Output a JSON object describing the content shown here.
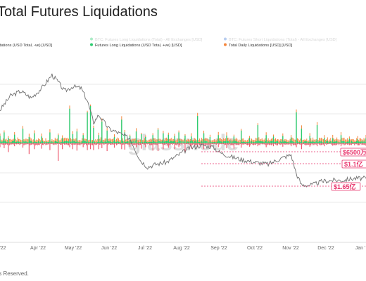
{
  "page": {
    "title": "Total Futures Liquidations",
    "footer": "ts Reserved."
  },
  "colors": {
    "long": "#2ecc71",
    "short": "#ee5a6f",
    "total": "#f5863b",
    "price": "#6e6e6e",
    "price_faded": "#7aa0e8",
    "tag": "#e8336b",
    "grid": "#e8e8e8",
    "axis_text": "#666666",
    "watermark": "#dddddd"
  },
  "watermark": "glassnode",
  "chart_data": {
    "type": "bar",
    "title": "Total Futures Liquidations",
    "legend": {
      "placement": "top",
      "entries": [
        {
          "label": "BTC: Futures Long Liquidations (Total) - All Exchanges [USD]",
          "color": "#2ecc71",
          "faded": true
        },
        {
          "label": "BTC: Futures Short Liquidations (Total) - All Exchanges [USD]",
          "color": "#4a7fd6",
          "faded": true
        },
        {
          "label": "uidations (USD Total, -ve) [USD]",
          "color": "#ee5a6f",
          "faded": false,
          "no_marker": true
        },
        {
          "label": "Futures Long Liquidations (USD Total, +ve) [USD]",
          "color": "#2ecc71",
          "faded": false
        },
        {
          "label": "Total Daily Liquidations [USD] [USD]",
          "color": "#f5863b",
          "faded": false
        }
      ]
    },
    "x_axis": {
      "ticks": [
        "'22",
        "Apr '22",
        "May '22",
        "Jun '22",
        "Jul '22",
        "Aug '22",
        "Sep '22",
        "Oct '22",
        "Nov '22",
        "Dec '22",
        "Jan '"
      ],
      "unit": "days"
    },
    "grid": true,
    "zero_level": 0,
    "value_labels": [
      {
        "text": "$6500万",
        "value": -65000000
      },
      {
        "text": "$1.1亿",
        "value": -110000000
      },
      {
        "text": "$1.65亿",
        "value": -165000000
      }
    ],
    "spikes": [
      {
        "day": 0,
        "long": 80,
        "short": 40
      },
      {
        "day": 4,
        "long": 120,
        "short": 50
      },
      {
        "day": 8,
        "long": 60,
        "short": 90
      },
      {
        "day": 14,
        "long": 95,
        "short": 30
      },
      {
        "day": 22,
        "long": 160,
        "short": 45
      },
      {
        "day": 28,
        "long": 70,
        "short": 110
      },
      {
        "day": 33,
        "long": 110,
        "short": 60
      },
      {
        "day": 40,
        "long": 75,
        "short": 55
      },
      {
        "day": 48,
        "long": 120,
        "short": 70
      },
      {
        "day": 56,
        "long": 90,
        "short": 180
      },
      {
        "day": 60,
        "long": 60,
        "short": 60
      },
      {
        "day": 67,
        "long": 380,
        "short": 40
      },
      {
        "day": 70,
        "long": 100,
        "short": 60
      },
      {
        "day": 74,
        "long": 130,
        "short": 75
      },
      {
        "day": 80,
        "long": 90,
        "short": 40
      },
      {
        "day": 84,
        "long": 340,
        "short": 70
      },
      {
        "day": 87,
        "long": 410,
        "short": 60
      },
      {
        "day": 90,
        "long": 170,
        "short": 70
      },
      {
        "day": 95,
        "long": 90,
        "short": 60
      },
      {
        "day": 98,
        "long": 240,
        "short": 50
      },
      {
        "day": 103,
        "long": 140,
        "short": 80
      },
      {
        "day": 110,
        "long": 70,
        "short": 45
      },
      {
        "day": 117,
        "long": 260,
        "short": 60
      },
      {
        "day": 120,
        "long": 120,
        "short": 65
      },
      {
        "day": 125,
        "long": 80,
        "short": 35
      },
      {
        "day": 131,
        "long": 130,
        "short": 40
      },
      {
        "day": 136,
        "long": 100,
        "short": 55
      },
      {
        "day": 140,
        "long": 70,
        "short": 40
      },
      {
        "day": 147,
        "long": 90,
        "short": 75
      },
      {
        "day": 152,
        "long": 150,
        "short": 80
      },
      {
        "day": 157,
        "long": 110,
        "short": 60
      },
      {
        "day": 162,
        "long": 95,
        "short": 45
      },
      {
        "day": 168,
        "long": 80,
        "short": 60
      },
      {
        "day": 172,
        "long": 120,
        "short": 40
      },
      {
        "day": 178,
        "long": 85,
        "short": 95
      },
      {
        "day": 184,
        "long": 75,
        "short": 55
      },
      {
        "day": 190,
        "long": 300,
        "short": 40
      },
      {
        "day": 196,
        "long": 110,
        "short": 60
      },
      {
        "day": 202,
        "long": 70,
        "short": 45
      },
      {
        "day": 210,
        "long": 90,
        "short": 40
      },
      {
        "day": 218,
        "long": 85,
        "short": 50
      },
      {
        "day": 225,
        "long": 75,
        "short": 55
      },
      {
        "day": 232,
        "long": 140,
        "short": 45
      },
      {
        "day": 240,
        "long": 60,
        "short": 35
      },
      {
        "day": 248,
        "long": 200,
        "short": 30
      },
      {
        "day": 256,
        "long": 90,
        "short": 40
      },
      {
        "day": 263,
        "long": 75,
        "short": 30
      },
      {
        "day": 272,
        "long": 80,
        "short": 35
      },
      {
        "day": 280,
        "long": 65,
        "short": 30
      },
      {
        "day": 285,
        "long": 340,
        "short": 40
      },
      {
        "day": 290,
        "long": 160,
        "short": 60
      },
      {
        "day": 298,
        "long": 80,
        "short": 35
      },
      {
        "day": 305,
        "long": 200,
        "short": 30
      },
      {
        "day": 312,
        "long": 60,
        "short": 30
      },
      {
        "day": 320,
        "long": 55,
        "short": 25
      },
      {
        "day": 328,
        "long": 90,
        "short": 30
      },
      {
        "day": 336,
        "long": 50,
        "short": 20
      },
      {
        "day": 344,
        "long": 45,
        "short": 20
      },
      {
        "day": 352,
        "long": 60,
        "short": 25
      }
    ],
    "price_path": [
      [
        0,
        0.35
      ],
      [
        10,
        0.5
      ],
      [
        20,
        0.55
      ],
      [
        30,
        0.48
      ],
      [
        40,
        0.58
      ],
      [
        50,
        0.72
      ],
      [
        55,
        0.66
      ],
      [
        62,
        0.55
      ],
      [
        70,
        0.6
      ],
      [
        78,
        0.58
      ],
      [
        84,
        0.45
      ],
      [
        90,
        0.22
      ],
      [
        95,
        0.3
      ],
      [
        105,
        0.15
      ],
      [
        112,
        0.12
      ],
      [
        125,
        0.05
      ],
      [
        135,
        -0.18
      ],
      [
        142,
        -0.25
      ],
      [
        150,
        -0.22
      ],
      [
        160,
        -0.2
      ],
      [
        172,
        -0.12
      ],
      [
        182,
        -0.05
      ],
      [
        195,
        -0.02
      ],
      [
        205,
        -0.04
      ],
      [
        212,
        -0.1
      ],
      [
        222,
        -0.14
      ],
      [
        232,
        -0.17
      ],
      [
        245,
        -0.2
      ],
      [
        258,
        -0.22
      ],
      [
        270,
        -0.16
      ],
      [
        280,
        -0.12
      ],
      [
        285,
        -0.32
      ],
      [
        290,
        -0.44
      ],
      [
        300,
        -0.44
      ],
      [
        310,
        -0.4
      ],
      [
        320,
        -0.39
      ],
      [
        330,
        -0.39
      ],
      [
        340,
        -0.37
      ],
      [
        352,
        -0.37
      ]
    ]
  }
}
